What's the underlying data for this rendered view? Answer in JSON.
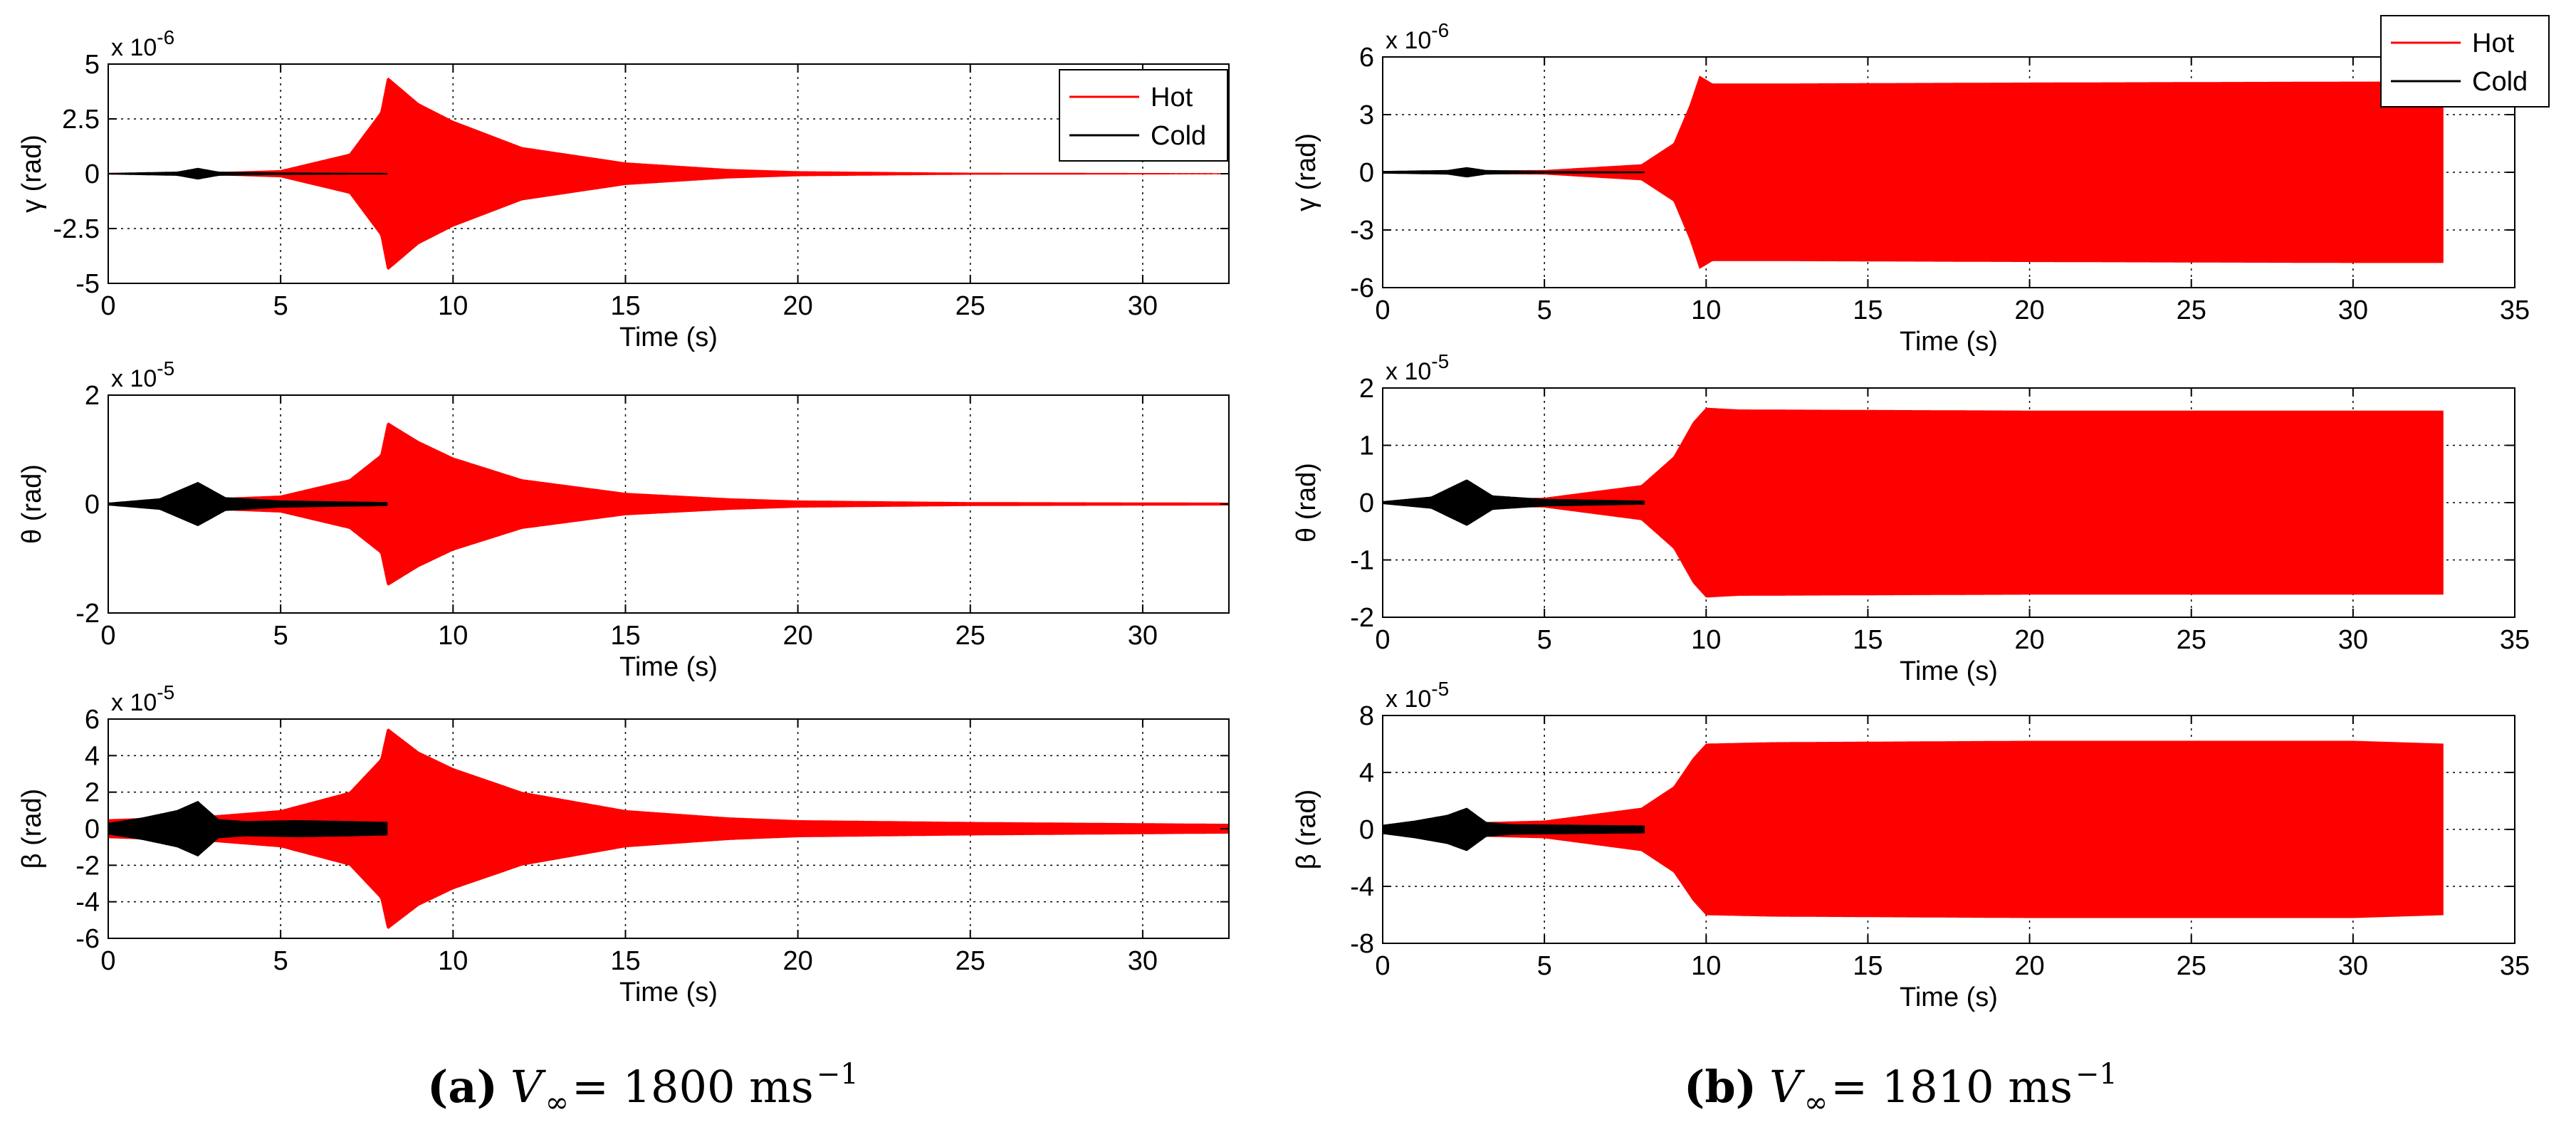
{
  "chart_data": [
    {
      "type": "line",
      "panel": "a",
      "ylabel": "γ (rad)",
      "xlabel": "Time (s)",
      "multiplier": "x 10",
      "multiplier_exp": "-6",
      "xlim": [
        0,
        32.5
      ],
      "ylim": [
        -5,
        5
      ],
      "xticks": [
        "0",
        "5",
        "10",
        "15",
        "20",
        "25",
        "30"
      ],
      "yticks": [
        "-5",
        "-2.5",
        "0",
        "2.5",
        "5"
      ],
      "legend": {
        "placement": "top-right",
        "entries": [
          "Hot",
          "Cold"
        ]
      },
      "series": [
        {
          "name": "Hot",
          "color": "#ff0000",
          "envelope": [
            [
              0,
              0.02
            ],
            [
              3,
              0.05
            ],
            [
              5,
              0.15
            ],
            [
              7,
              0.9
            ],
            [
              7.9,
              2.8
            ],
            [
              8.1,
              4.4
            ],
            [
              9,
              3.2
            ],
            [
              10,
              2.4
            ],
            [
              12,
              1.2
            ],
            [
              15,
              0.5
            ],
            [
              18,
              0.2
            ],
            [
              20,
              0.1
            ],
            [
              25,
              0.03
            ],
            [
              32.5,
              0.01
            ]
          ],
          "end": 32.5
        },
        {
          "name": "Cold",
          "color": "#000000",
          "envelope": [
            [
              0,
              0.02
            ],
            [
              2,
              0.08
            ],
            [
              2.6,
              0.25
            ],
            [
              3.2,
              0.08
            ],
            [
              5,
              0.04
            ],
            [
              8.1,
              0.02
            ]
          ],
          "end": 8.1
        }
      ]
    },
    {
      "type": "line",
      "panel": "a",
      "ylabel": "θ (rad)",
      "xlabel": "Time (s)",
      "multiplier": "x 10",
      "multiplier_exp": "-5",
      "xlim": [
        0,
        32.5
      ],
      "ylim": [
        -2,
        2
      ],
      "xticks": [
        "0",
        "5",
        "10",
        "15",
        "20",
        "25",
        "30"
      ],
      "yticks": [
        "-2",
        "0",
        "2"
      ],
      "series": [
        {
          "name": "Hot",
          "color": "#ff0000",
          "envelope": [
            [
              0,
              0.02
            ],
            [
              3,
              0.1
            ],
            [
              5,
              0.15
            ],
            [
              7,
              0.45
            ],
            [
              7.9,
              0.9
            ],
            [
              8.1,
              1.5
            ],
            [
              9,
              1.15
            ],
            [
              10,
              0.85
            ],
            [
              12,
              0.45
            ],
            [
              15,
              0.2
            ],
            [
              18,
              0.1
            ],
            [
              20,
              0.06
            ],
            [
              25,
              0.03
            ],
            [
              32.5,
              0.02
            ]
          ],
          "end": 32.5
        },
        {
          "name": "Cold",
          "color": "#000000",
          "envelope": [
            [
              0,
              0.02
            ],
            [
              1.5,
              0.1
            ],
            [
              2.6,
              0.4
            ],
            [
              3.4,
              0.12
            ],
            [
              5,
              0.06
            ],
            [
              8.1,
              0.03
            ]
          ],
          "end": 8.1
        }
      ]
    },
    {
      "type": "line",
      "panel": "a",
      "ylabel": "β (rad)",
      "xlabel": "Time (s)",
      "multiplier": "x 10",
      "multiplier_exp": "-5",
      "xlim": [
        0,
        32.5
      ],
      "ylim": [
        -6,
        6
      ],
      "xticks": [
        "0",
        "5",
        "10",
        "15",
        "20",
        "25",
        "30"
      ],
      "yticks": [
        "-6",
        "-4",
        "-2",
        "0",
        "2",
        "4",
        "6"
      ],
      "series": [
        {
          "name": "Hot",
          "color": "#ff0000",
          "envelope": [
            [
              0,
              0.5
            ],
            [
              3,
              0.7
            ],
            [
              5,
              1.0
            ],
            [
              7,
              2.0
            ],
            [
              7.9,
              3.8
            ],
            [
              8.1,
              5.5
            ],
            [
              9,
              4.2
            ],
            [
              10,
              3.3
            ],
            [
              12,
              2.0
            ],
            [
              15,
              1.0
            ],
            [
              18,
              0.6
            ],
            [
              20,
              0.45
            ],
            [
              25,
              0.35
            ],
            [
              32.5,
              0.25
            ]
          ],
          "end": 32.5
        },
        {
          "name": "Cold",
          "color": "#000000",
          "envelope": [
            [
              0,
              0.3
            ],
            [
              1,
              0.6
            ],
            [
              2,
              1.0
            ],
            [
              2.6,
              1.5
            ],
            [
              3.2,
              0.5
            ],
            [
              4,
              0.4
            ],
            [
              5.5,
              0.45
            ],
            [
              7,
              0.4
            ],
            [
              8.1,
              0.35
            ]
          ],
          "end": 8.1
        }
      ]
    },
    {
      "type": "line",
      "panel": "b",
      "ylabel": "γ (rad)",
      "xlabel": "Time (s)",
      "multiplier": "x 10",
      "multiplier_exp": "-6",
      "xlim": [
        0,
        35
      ],
      "ylim": [
        -6,
        6
      ],
      "xticks": [
        "0",
        "5",
        "10",
        "15",
        "20",
        "25",
        "30",
        "35"
      ],
      "yticks": [
        "-6",
        "-3",
        "0",
        "3",
        "6"
      ],
      "legend": {
        "placement": "top-right",
        "entries": [
          "Hot",
          "Cold"
        ]
      },
      "series": [
        {
          "name": "Hot",
          "color": "#ff0000",
          "envelope": [
            [
              0,
              0.05
            ],
            [
              5,
              0.1
            ],
            [
              8,
              0.4
            ],
            [
              9,
              1.5
            ],
            [
              9.5,
              3.5
            ],
            [
              9.8,
              5.0
            ],
            [
              10.2,
              4.6
            ],
            [
              12,
              4.6
            ],
            [
              20,
              4.65
            ],
            [
              30,
              4.7
            ],
            [
              32.8,
              4.7
            ]
          ],
          "end": 32.8
        },
        {
          "name": "Cold",
          "color": "#000000",
          "envelope": [
            [
              0,
              0.05
            ],
            [
              2,
              0.1
            ],
            [
              2.6,
              0.25
            ],
            [
              3.2,
              0.1
            ],
            [
              5,
              0.05
            ],
            [
              8.1,
              0.03
            ]
          ],
          "end": 8.1
        }
      ]
    },
    {
      "type": "line",
      "panel": "b",
      "ylabel": "θ (rad)",
      "xlabel": "Time (s)",
      "multiplier": "x 10",
      "multiplier_exp": "-5",
      "xlim": [
        0,
        35
      ],
      "ylim": [
        -2,
        2
      ],
      "xticks": [
        "0",
        "5",
        "10",
        "15",
        "20",
        "25",
        "30",
        "35"
      ],
      "yticks": [
        "-2",
        "-1",
        "0",
        "1",
        "2"
      ],
      "series": [
        {
          "name": "Hot",
          "color": "#ff0000",
          "envelope": [
            [
              0,
              0.02
            ],
            [
              5,
              0.08
            ],
            [
              8,
              0.3
            ],
            [
              9,
              0.8
            ],
            [
              9.6,
              1.4
            ],
            [
              10,
              1.65
            ],
            [
              11,
              1.62
            ],
            [
              20,
              1.6
            ],
            [
              32.8,
              1.6
            ]
          ],
          "end": 32.8
        },
        {
          "name": "Cold",
          "color": "#000000",
          "envelope": [
            [
              0,
              0.02
            ],
            [
              1.5,
              0.1
            ],
            [
              2.6,
              0.4
            ],
            [
              3.4,
              0.12
            ],
            [
              5,
              0.06
            ],
            [
              8.1,
              0.03
            ]
          ],
          "end": 8.1
        }
      ]
    },
    {
      "type": "line",
      "panel": "b",
      "ylabel": "β (rad)",
      "xlabel": "Time (s)",
      "multiplier": "x 10",
      "multiplier_exp": "-5",
      "xlim": [
        0,
        35
      ],
      "ylim": [
        -8,
        8
      ],
      "xticks": [
        "0",
        "5",
        "10",
        "15",
        "20",
        "25",
        "30",
        "35"
      ],
      "yticks": [
        "-8",
        "-4",
        "0",
        "4",
        "8"
      ],
      "series": [
        {
          "name": "Hot",
          "color": "#ff0000",
          "envelope": [
            [
              0,
              0.3
            ],
            [
              5,
              0.6
            ],
            [
              8,
              1.5
            ],
            [
              9,
              3.0
            ],
            [
              9.6,
              5.0
            ],
            [
              10,
              6.0
            ],
            [
              12,
              6.1
            ],
            [
              20,
              6.2
            ],
            [
              30,
              6.2
            ],
            [
              32.8,
              6.0
            ]
          ],
          "end": 32.8
        },
        {
          "name": "Cold",
          "color": "#000000",
          "envelope": [
            [
              0,
              0.3
            ],
            [
              1,
              0.6
            ],
            [
              2,
              1.0
            ],
            [
              2.6,
              1.5
            ],
            [
              3.2,
              0.5
            ],
            [
              4,
              0.35
            ],
            [
              6,
              0.3
            ],
            [
              8.1,
              0.25
            ]
          ],
          "end": 8.1
        }
      ]
    }
  ],
  "captions": [
    {
      "label": "(a)",
      "var": "V",
      "sub": "∞",
      "eq": " = 1800 ms",
      "sup": "−1"
    },
    {
      "label": "(b)",
      "var": "V",
      "sub": "∞",
      "eq": " = 1810 ms",
      "sup": "−1"
    }
  ]
}
